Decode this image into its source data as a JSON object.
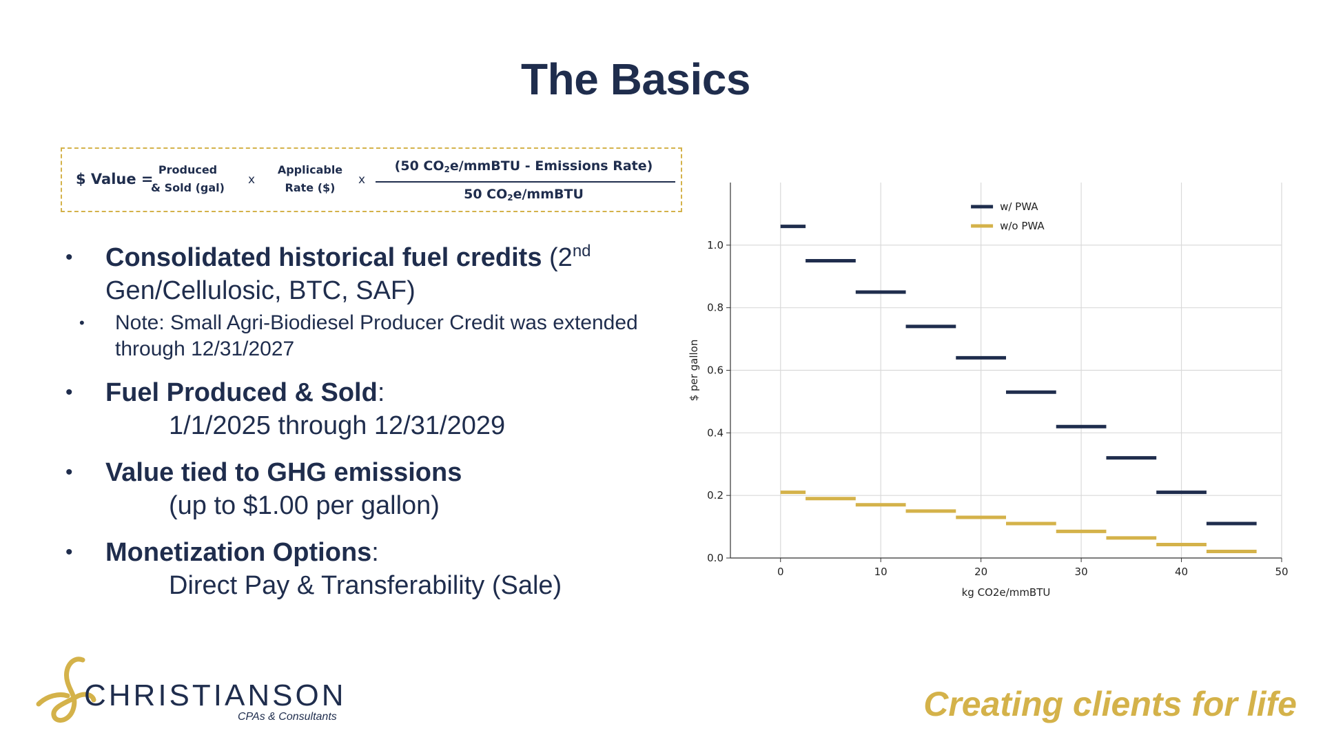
{
  "slide": {
    "title": "The Basics",
    "tagline": "Creating clients for life"
  },
  "formula": {
    "label": "$ Value =",
    "term1_line1": "Produced",
    "term1_line2": "& Sold (gal)",
    "times": "x",
    "term2_line1": "Applicable",
    "term2_line2": "Rate ($)",
    "numerator_a": "(50 CO",
    "numerator_sub": "2",
    "numerator_b": "e/mmBTU - Emissions Rate)",
    "denominator_a": "50 CO",
    "denominator_sub": "2",
    "denominator_b": "e/mmBTU"
  },
  "bullets": {
    "b1_bold": "Consolidated historical fuel credits",
    "b1_rest": " (2",
    "b1_sup": "nd",
    "b1_line2": "Gen/Cellulosic, BTC, SAF)",
    "b1_sub": "Note: Small Agri-Biodiesel Producer Credit was extended through 12/31/2027",
    "b2_bold": "Fuel Produced & Sold",
    "b2_colon": ":",
    "b2_detail": "1/1/2025 through 12/31/2029",
    "b3_bold": "Value tied to GHG emissions",
    "b3_detail": "(up to $1.00 per gallon)",
    "b4_bold": "Monetization Options",
    "b4_colon": ":",
    "b4_detail": "Direct Pay & Transferability (Sale)"
  },
  "logo": {
    "name": "CHRISTIANSON",
    "sub": "CPAs & Consultants"
  },
  "chart_data": {
    "type": "line",
    "xlabel": "kg CO2e/mmBTU",
    "ylabel": "$ per gallon",
    "xlim": [
      -5,
      50
    ],
    "ylim": [
      0,
      1.2
    ],
    "xticks": [
      0,
      10,
      20,
      30,
      40,
      50
    ],
    "yticks": [
      0.0,
      0.2,
      0.4,
      0.6,
      0.8,
      1.0
    ],
    "xtick_labels": [
      "0",
      "10",
      "20",
      "30",
      "40",
      "50"
    ],
    "ytick_labels": [
      "0.0",
      "0.2",
      "0.4",
      "0.6",
      "0.8",
      "1.0"
    ],
    "grid": true,
    "legend_position": "top-center",
    "series": [
      {
        "name": "w/ PWA",
        "color": "#1f2d4d",
        "steps": [
          {
            "x0": 0,
            "x1": 2.5,
            "y": 1.06
          },
          {
            "x0": 2.5,
            "x1": 7.5,
            "y": 0.95
          },
          {
            "x0": 7.5,
            "x1": 12.5,
            "y": 0.85
          },
          {
            "x0": 12.5,
            "x1": 17.5,
            "y": 0.74
          },
          {
            "x0": 17.5,
            "x1": 22.5,
            "y": 0.64
          },
          {
            "x0": 22.5,
            "x1": 27.5,
            "y": 0.53
          },
          {
            "x0": 27.5,
            "x1": 32.5,
            "y": 0.42
          },
          {
            "x0": 32.5,
            "x1": 37.5,
            "y": 0.32
          },
          {
            "x0": 37.5,
            "x1": 42.5,
            "y": 0.21
          },
          {
            "x0": 42.5,
            "x1": 47.5,
            "y": 0.11
          }
        ]
      },
      {
        "name": "w/o PWA",
        "color": "#d4b24a",
        "steps": [
          {
            "x0": 0,
            "x1": 2.5,
            "y": 0.21
          },
          {
            "x0": 2.5,
            "x1": 7.5,
            "y": 0.19
          },
          {
            "x0": 7.5,
            "x1": 12.5,
            "y": 0.17
          },
          {
            "x0": 12.5,
            "x1": 17.5,
            "y": 0.15
          },
          {
            "x0": 17.5,
            "x1": 22.5,
            "y": 0.13
          },
          {
            "x0": 22.5,
            "x1": 27.5,
            "y": 0.11
          },
          {
            "x0": 27.5,
            "x1": 32.5,
            "y": 0.085
          },
          {
            "x0": 32.5,
            "x1": 37.5,
            "y": 0.064
          },
          {
            "x0": 37.5,
            "x1": 42.5,
            "y": 0.043
          },
          {
            "x0": 42.5,
            "x1": 47.5,
            "y": 0.021
          }
        ]
      }
    ]
  }
}
